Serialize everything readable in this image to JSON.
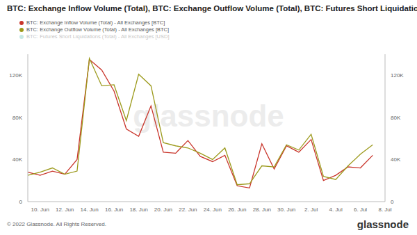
{
  "chart_data": {
    "type": "line",
    "title": "BTC: Exchange Inflow Volume (Total), BTC: Exchange Outflow Volume (Total), BTC: Futures Short Liquidations (Total)",
    "annotations": [
      "© 2022 Glassnode. All Rights Reserved.",
      "glassnode",
      "glassnode"
    ],
    "categories": [
      null,
      "10. Jun",
      null,
      "12. Jun",
      null,
      "14. Jun",
      null,
      "16. Jun",
      null,
      "18. Jun",
      null,
      "20. Jun",
      null,
      "22. Jun",
      null,
      "24. Jun",
      null,
      "26. Jun",
      null,
      "28. Jun",
      null,
      "30. Jun",
      null,
      "2. Jul",
      null,
      "4. Jul",
      null,
      "6. Jul",
      null,
      "8. Jul"
    ],
    "series": [
      {
        "name": "BTC: Exchange Inflow Volume (Total) - All Exchanges [BTC]",
        "color": "#c9352b",
        "values": [
          28000,
          25000,
          29000,
          26000,
          40000,
          135000,
          125000,
          105000,
          69000,
          62000,
          91000,
          47000,
          46000,
          58000,
          43000,
          38000,
          44000,
          15000,
          13000,
          55000,
          31000,
          53000,
          47000,
          59000,
          20000,
          25000,
          33000,
          32000,
          44000,
          null
        ]
      },
      {
        "name": "BTC: Exchange Outflow Volume (Total) - All Exchanges [BTC]",
        "color": "#9c9a1c",
        "values": [
          25000,
          28000,
          32000,
          26000,
          29000,
          136000,
          110000,
          111000,
          77000,
          121000,
          110000,
          56000,
          53000,
          51000,
          46000,
          40000,
          51000,
          16000,
          17000,
          34000,
          33000,
          54000,
          49000,
          64000,
          24000,
          21000,
          34000,
          45000,
          54000,
          null
        ]
      },
      {
        "name": "BTC: Futures Short Liquidations (Total) - All Exchanges [USD]",
        "color": "#5fc1b4",
        "values": [
          null,
          null,
          null,
          null,
          null,
          null,
          null,
          null,
          null,
          null,
          null,
          null,
          null,
          null,
          null,
          null,
          null,
          null,
          null,
          null,
          null,
          null,
          null,
          null,
          null,
          null,
          null,
          null,
          null,
          null
        ]
      }
    ],
    "ylim": [
      0,
      140000
    ],
    "yticks": [
      0,
      {
        "value": 40000,
        "label": "40K"
      },
      {
        "value": 80000,
        "label": "80K"
      },
      {
        "value": 120000,
        "label": "120K"
      }
    ],
    "y2lim": [
      0,
      140000
    ],
    "y2ticks": [
      0,
      {
        "value": 40000,
        "label": "40K"
      },
      {
        "value": 80000,
        "label": "80K"
      },
      {
        "value": 120000,
        "label": "120K"
      }
    ],
    "grid": false
  }
}
